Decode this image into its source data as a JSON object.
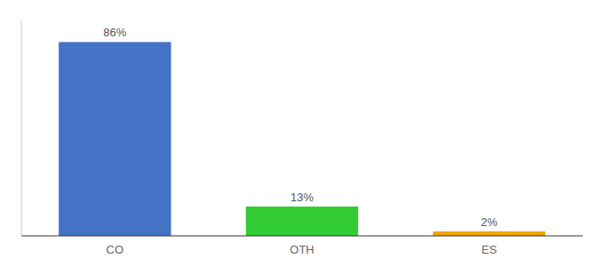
{
  "chart_data": {
    "type": "bar",
    "categories": [
      "CO",
      "OTH",
      "ES"
    ],
    "values": [
      86,
      13,
      2
    ],
    "value_labels": [
      "86%",
      "13%",
      "2%"
    ],
    "colors": [
      "#4472c4",
      "#33cc33",
      "#f0a500"
    ],
    "ylim": [
      0,
      96
    ],
    "data_labels": true,
    "tick_labels": "x",
    "grid": false
  }
}
